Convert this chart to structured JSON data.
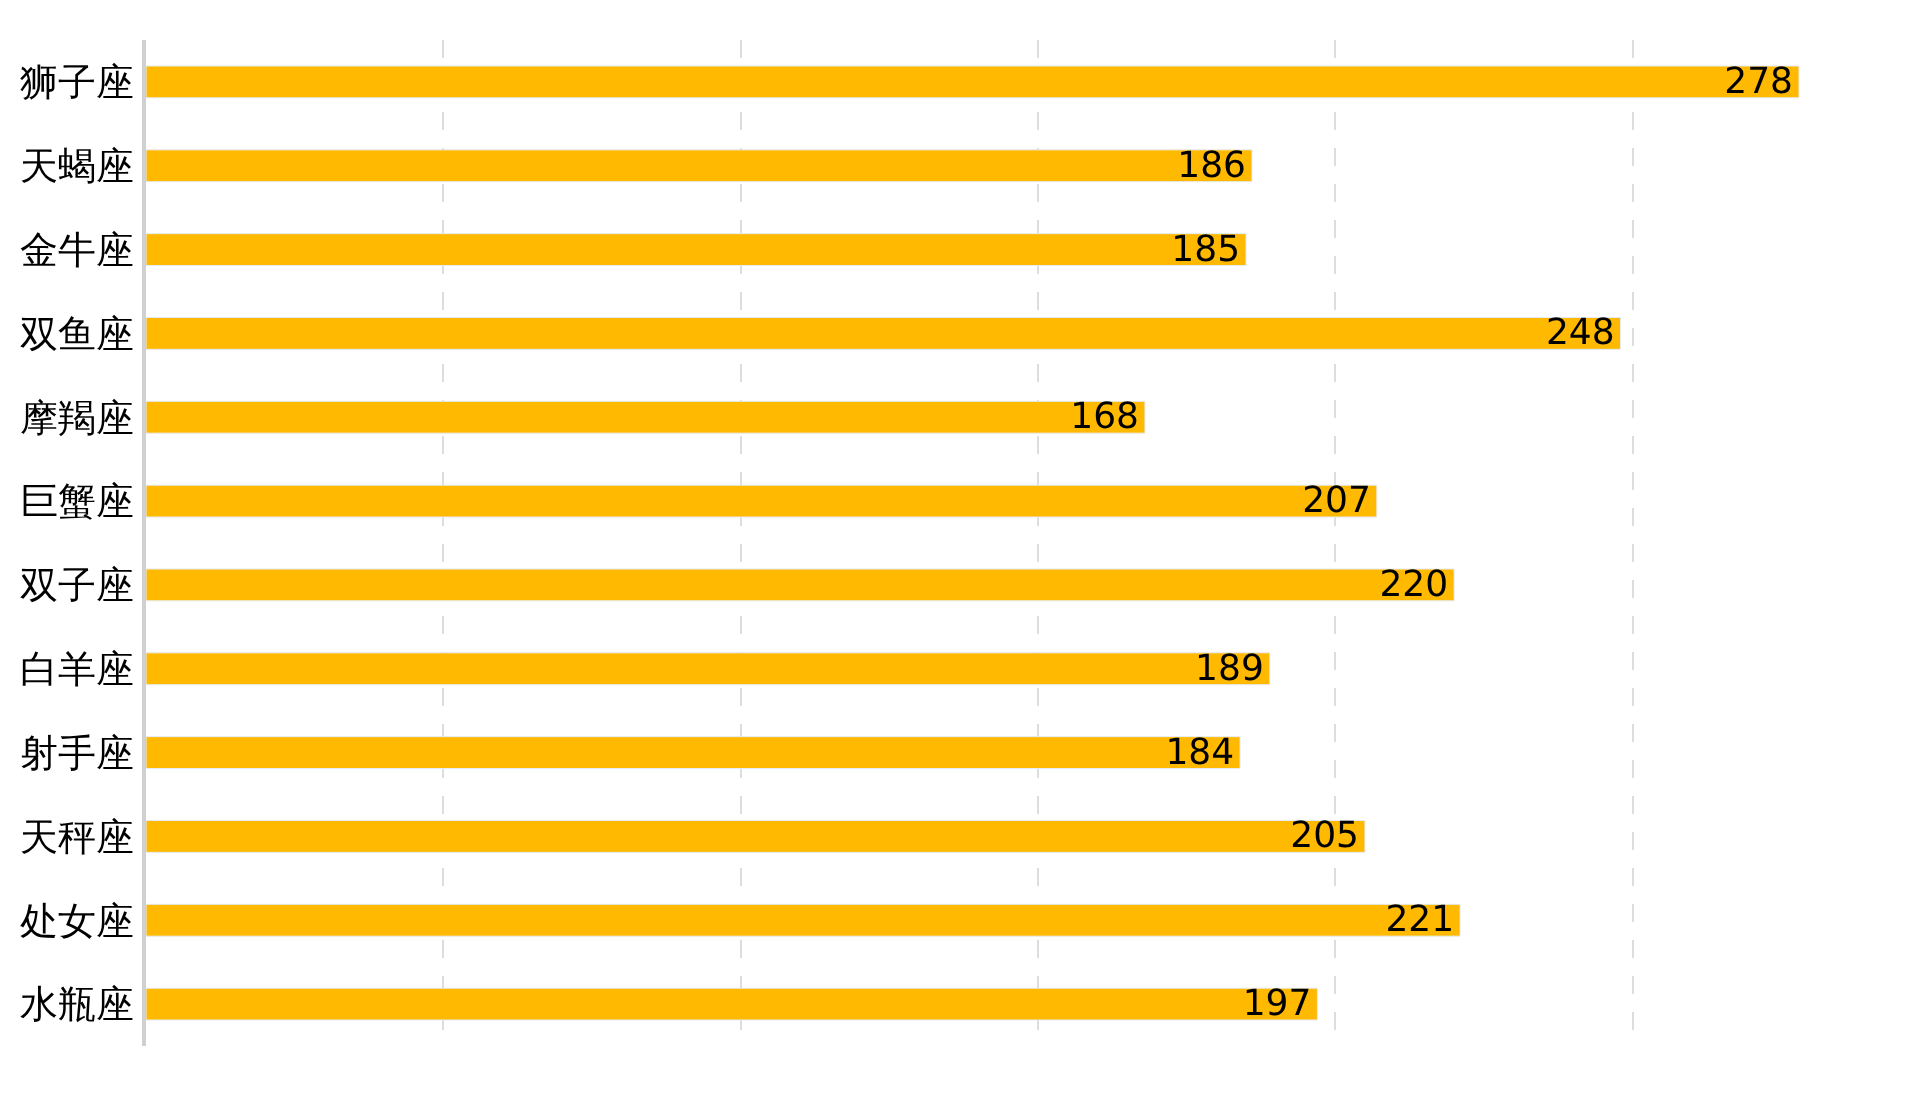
{
  "chart_data": {
    "type": "bar",
    "orientation": "horizontal",
    "categories": [
      "狮子座",
      "天蝎座",
      "金牛座",
      "双鱼座",
      "摩羯座",
      "巨蟹座",
      "双子座",
      "白羊座",
      "射手座",
      "天秤座",
      "处女座",
      "水瓶座"
    ],
    "values": [
      278,
      186,
      185,
      248,
      168,
      207,
      220,
      189,
      184,
      205,
      221,
      197
    ],
    "color": "#ffb900",
    "data_labels": true,
    "grid": "x",
    "tick_labels": "y",
    "xticks": [
      {
        "value": 50,
        "label": null
      },
      {
        "value": 100,
        "label": null
      },
      {
        "value": 150,
        "label": null
      },
      {
        "value": 200,
        "label": null
      },
      {
        "value": 250,
        "label": null
      }
    ]
  }
}
